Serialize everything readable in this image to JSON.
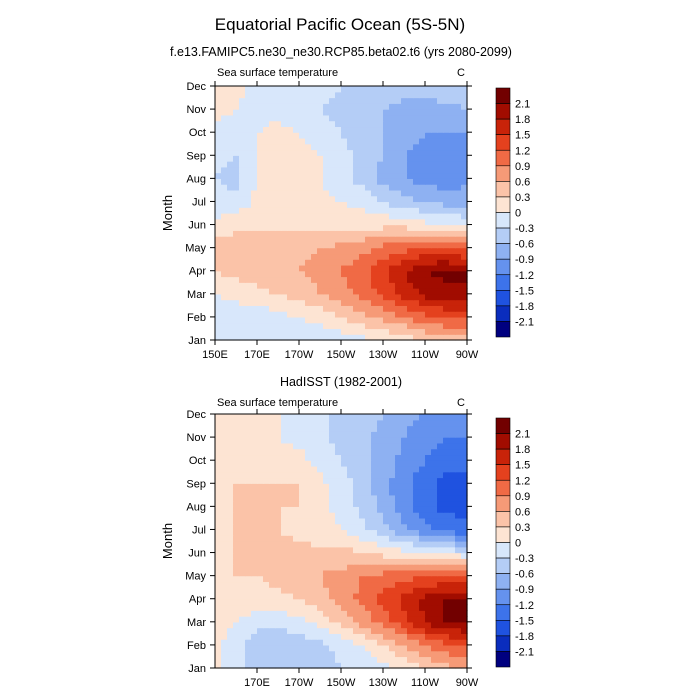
{
  "figure": {
    "title": "Equatorial Pacific Ocean (5S-5N)"
  },
  "colors": {
    "palette": [
      "#00007f",
      "#0a2dbd",
      "#1f52e0",
      "#3d73ea",
      "#6592ee",
      "#8eb1f2",
      "#b4cdf6",
      "#d8e7fb",
      "#fde4d3",
      "#fbc3a8",
      "#f69a77",
      "#f06a45",
      "#e4411e",
      "#c82309",
      "#a10c00",
      "#720000"
    ],
    "frame": "#000000"
  },
  "chart_data": [
    {
      "type": "heatmap",
      "title": "f.e13.FAMIPC5.ne30_ne30.RCP85.beta02.t6 (yrs 2080-2099)",
      "left_label": "Sea surface temperature",
      "units": "C",
      "ylabel": "Month",
      "xlabel": "",
      "x_ticks": [
        150,
        170,
        190,
        210,
        230,
        250,
        270
      ],
      "x_tick_labels": [
        "150E",
        "170E",
        "170W",
        "150W",
        "130W",
        "110W",
        "90W"
      ],
      "xlim": [
        150,
        270
      ],
      "y_ticks": [
        1,
        2,
        3,
        4,
        5,
        6,
        7,
        8,
        9,
        10,
        11,
        12
      ],
      "y_tick_labels": [
        "Jan",
        "Feb",
        "Mar",
        "Apr",
        "May",
        "Jun",
        "Jul",
        "Aug",
        "Sep",
        "Oct",
        "Nov",
        "Dec"
      ],
      "ylim": [
        1,
        12
      ],
      "colorbar_levels": [
        -2.1,
        -1.8,
        -1.5,
        -1.2,
        -0.9,
        -0.6,
        -0.3,
        0,
        0.3,
        0.6,
        0.9,
        1.2,
        1.5,
        1.8,
        2.1
      ],
      "colorbar_labels": [
        "2.1",
        "1.8",
        "1.5",
        "1.2",
        "0.9",
        "0.6",
        "0.3",
        "0",
        "-0.3",
        "-0.6",
        "-0.9",
        "-1.2",
        "-1.5",
        "-1.8",
        "-2.1"
      ],
      "longitudes": [
        150,
        160,
        170,
        180,
        190,
        200,
        210,
        220,
        230,
        240,
        250,
        260,
        270
      ],
      "months": [
        1,
        2,
        3,
        4,
        5,
        6,
        7,
        8,
        9,
        10,
        11,
        12
      ],
      "values": [
        [
          -0.2,
          -0.2,
          -0.2,
          -0.1,
          -0.2,
          -0.2,
          -0.2,
          -0.1,
          0.0,
          0.1,
          0.3,
          0.4,
          0.4
        ],
        [
          -0.2,
          -0.2,
          -0.2,
          -0.1,
          0.0,
          0.1,
          0.3,
          0.5,
          0.7,
          0.9,
          1.1,
          1.2,
          1.2
        ],
        [
          0.0,
          0.1,
          0.2,
          0.3,
          0.4,
          0.6,
          0.8,
          1.0,
          1.3,
          1.6,
          1.9,
          2.0,
          2.1
        ],
        [
          0.3,
          0.4,
          0.5,
          0.5,
          0.6,
          0.7,
          0.9,
          1.1,
          1.4,
          1.8,
          2.1,
          2.2,
          2.1
        ],
        [
          0.4,
          0.5,
          0.5,
          0.5,
          0.5,
          0.6,
          0.7,
          0.8,
          1.0,
          1.1,
          1.2,
          1.2,
          1.1
        ],
        [
          0.1,
          0.2,
          0.2,
          0.2,
          0.2,
          0.2,
          0.2,
          0.2,
          0.2,
          0.2,
          0.1,
          0.0,
          -0.1
        ],
        [
          -0.2,
          -0.2,
          0.1,
          0.2,
          0.2,
          0.1,
          0.0,
          -0.1,
          -0.3,
          -0.5,
          -0.6,
          -0.7,
          -0.7
        ],
        [
          -0.3,
          -0.4,
          0.0,
          0.2,
          0.1,
          0.0,
          -0.2,
          -0.4,
          -0.7,
          -0.9,
          -1.0,
          -1.1,
          -1.0
        ],
        [
          -0.2,
          -0.3,
          0.0,
          0.2,
          0.1,
          0.0,
          -0.2,
          -0.4,
          -0.6,
          -0.9,
          -1.0,
          -1.1,
          -1.1
        ],
        [
          -0.1,
          -0.1,
          0.0,
          0.1,
          0.0,
          -0.1,
          -0.3,
          -0.5,
          -0.6,
          -0.8,
          -0.9,
          -0.9,
          -0.9
        ],
        [
          0.1,
          0.0,
          -0.1,
          -0.1,
          -0.2,
          -0.3,
          -0.4,
          -0.5,
          -0.6,
          -0.7,
          -0.7,
          -0.7,
          -0.6
        ],
        [
          0.1,
          0.1,
          -0.1,
          -0.2,
          -0.2,
          -0.2,
          -0.3,
          -0.3,
          -0.4,
          -0.5,
          -0.5,
          -0.4,
          -0.3
        ]
      ]
    },
    {
      "type": "heatmap",
      "title": "HadISST (1982-2001)",
      "left_label": "Sea surface temperature",
      "units": "C",
      "ylabel": "Month",
      "xlabel": "",
      "x_ticks": [
        170,
        190,
        210,
        230,
        250,
        270
      ],
      "x_tick_labels": [
        "170E",
        "170W",
        "150W",
        "130W",
        "110W",
        "90W"
      ],
      "xlim": [
        150,
        270
      ],
      "y_ticks": [
        1,
        2,
        3,
        4,
        5,
        6,
        7,
        8,
        9,
        10,
        11,
        12
      ],
      "y_tick_labels": [
        "Jan",
        "Feb",
        "Mar",
        "Apr",
        "May",
        "Jun",
        "Jul",
        "Aug",
        "Sep",
        "Oct",
        "Nov",
        "Dec"
      ],
      "ylim": [
        1,
        12
      ],
      "colorbar_levels": [
        -2.1,
        -1.8,
        -1.5,
        -1.2,
        -0.9,
        -0.6,
        -0.3,
        0,
        0.3,
        0.6,
        0.9,
        1.2,
        1.5,
        1.8,
        2.1
      ],
      "colorbar_labels": [
        "2.1",
        "1.8",
        "1.5",
        "1.2",
        "0.9",
        "0.6",
        "0.3",
        "0",
        "-0.3",
        "-0.6",
        "-0.9",
        "-1.2",
        "-1.5",
        "-1.8",
        "-2.1"
      ],
      "longitudes": [
        150,
        160,
        170,
        180,
        190,
        200,
        210,
        220,
        230,
        240,
        250,
        260,
        270
      ],
      "months": [
        1,
        2,
        3,
        4,
        5,
        6,
        7,
        8,
        9,
        10,
        11,
        12
      ],
      "values": [
        [
          0.1,
          -0.2,
          -0.4,
          -0.4,
          -0.4,
          -0.4,
          -0.3,
          -0.2,
          -0.1,
          0.1,
          0.3,
          0.5,
          0.6
        ],
        [
          0.1,
          -0.2,
          -0.5,
          -0.6,
          -0.5,
          -0.4,
          -0.2,
          0.0,
          0.3,
          0.6,
          0.9,
          1.1,
          1.2
        ],
        [
          0.2,
          0.0,
          -0.2,
          -0.2,
          -0.1,
          0.1,
          0.4,
          0.7,
          1.0,
          1.4,
          1.8,
          2.1,
          2.2
        ],
        [
          0.2,
          0.2,
          0.2,
          0.2,
          0.3,
          0.5,
          0.7,
          1.0,
          1.3,
          1.6,
          1.9,
          2.1,
          2.2
        ],
        [
          0.2,
          0.3,
          0.3,
          0.4,
          0.5,
          0.6,
          0.7,
          0.9,
          1.0,
          1.1,
          1.2,
          1.2,
          1.1
        ],
        [
          0.2,
          0.3,
          0.3,
          0.4,
          0.4,
          0.4,
          0.4,
          0.3,
          0.2,
          0.1,
          0.0,
          -0.1,
          -0.2
        ],
        [
          0.2,
          0.3,
          0.3,
          0.3,
          0.2,
          0.1,
          0.0,
          -0.2,
          -0.5,
          -0.8,
          -1.1,
          -1.3,
          -1.4
        ],
        [
          0.2,
          0.3,
          0.3,
          0.3,
          0.3,
          0.1,
          -0.1,
          -0.4,
          -0.7,
          -1.1,
          -1.4,
          -1.6,
          -1.6
        ],
        [
          0.2,
          0.3,
          0.3,
          0.3,
          0.3,
          0.1,
          -0.2,
          -0.4,
          -0.8,
          -1.1,
          -1.4,
          -1.6,
          -1.6
        ],
        [
          0.2,
          0.2,
          0.2,
          0.2,
          0.1,
          -0.1,
          -0.3,
          -0.5,
          -0.7,
          -1.0,
          -1.2,
          -1.4,
          -1.4
        ],
        [
          0.2,
          0.2,
          0.1,
          0.0,
          -0.1,
          -0.2,
          -0.4,
          -0.5,
          -0.7,
          -0.9,
          -1.1,
          -1.2,
          -1.2
        ],
        [
          0.2,
          0.2,
          0.1,
          0.0,
          -0.1,
          -0.2,
          -0.4,
          -0.5,
          -0.6,
          -0.8,
          -0.9,
          -1.0,
          -1.0
        ]
      ]
    }
  ]
}
